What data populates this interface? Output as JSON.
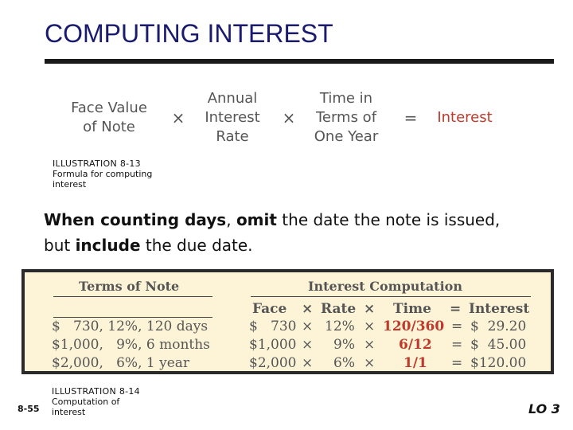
{
  "title": "COMPUTING INTEREST",
  "formula": {
    "term1": [
      "Face Value",
      "of Note"
    ],
    "op1": "×",
    "term2": [
      "Annual",
      "Interest",
      "Rate"
    ],
    "op2": "×",
    "term3": [
      "Time in",
      "Terms of",
      "One Year"
    ],
    "eq": "=",
    "result": "Interest",
    "colors": {
      "text": "#555555",
      "result": "#c0392b"
    }
  },
  "caption1": {
    "label": "ILLUSTRATION 8-13",
    "lines": [
      "Formula for computing",
      "interest"
    ]
  },
  "note": {
    "part1": "When counting days",
    "part2": ", ",
    "part3": "omit",
    "part4": " the date the note is issued,",
    "part5": "but ",
    "part6": "include",
    "part7": " the due date."
  },
  "table": {
    "left_header": "Terms of Note",
    "right_header": "Interest Computation",
    "columns": [
      "Face",
      "×",
      "Rate",
      "×",
      "Time",
      "=",
      "Interest"
    ],
    "rows": [
      {
        "terms": "$   730, 12%, 120 days",
        "face": "$   730",
        "x1": "×",
        "rate": "12%",
        "x2": "×",
        "time": "120/360",
        "eq": "=",
        "interest": "$  29.20"
      },
      {
        "terms": "$1,000,   9%, 6 months",
        "face": "$1,000",
        "x1": "×",
        "rate": "9%",
        "x2": "×",
        "time": "6/12",
        "eq": "=",
        "interest": "$  45.00"
      },
      {
        "terms": "$2,000,   6%, 1 year",
        "face": "$2,000",
        "x1": "×",
        "rate": "6%",
        "x2": "×",
        "time": "1/1",
        "eq": "=",
        "interest": "$120.00"
      }
    ],
    "colors": {
      "background": "#fdf4d7",
      "highlight": "#c0392b"
    }
  },
  "caption2": {
    "label": "ILLUSTRATION 8-14",
    "lines": [
      "Computation of",
      "interest"
    ]
  },
  "slide_number": "8-55",
  "lo": "LO 3"
}
